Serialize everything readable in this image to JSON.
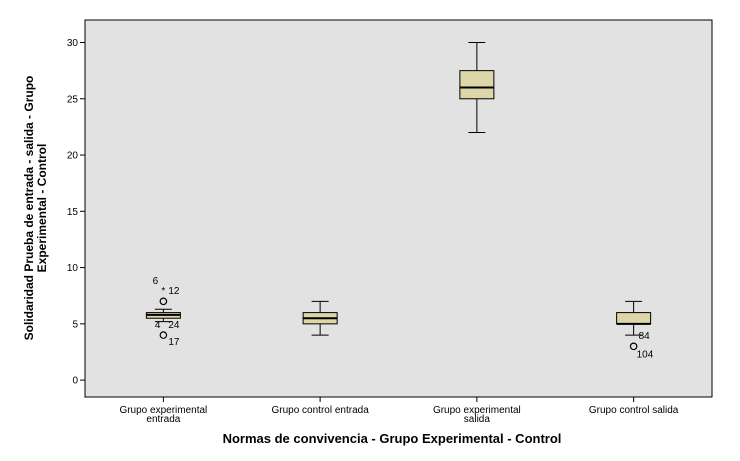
{
  "chart_data": {
    "type": "boxplot",
    "xlabel": "Normas de convivencia - Grupo Experimental - Control",
    "ylabel_lines": [
      "Solidaridad Prueba de entrada - salida - Grupo",
      "Experimental - Control"
    ],
    "ylim": [
      -1.5,
      32
    ],
    "yticks": [
      0,
      5,
      10,
      15,
      20,
      25,
      30
    ],
    "grid": false,
    "colors": {
      "plot_bg": "#e2e2e2",
      "box_fill": "#ddd6a8",
      "stroke": "#000000"
    },
    "categories": [
      {
        "label_lines": [
          "Grupo experimental",
          "entrada"
        ]
      },
      {
        "label_lines": [
          "Grupo control entrada"
        ]
      },
      {
        "label_lines": [
          "Grupo experimental",
          "salida"
        ]
      },
      {
        "label_lines": [
          "Grupo control salida"
        ]
      }
    ],
    "boxes": [
      {
        "min": 5.2,
        "q1": 5.5,
        "median": 5.8,
        "q3": 6.0,
        "max": 6.3,
        "outliers": [
          {
            "value": 8,
            "marker": "star",
            "label": "6"
          },
          {
            "value": 8,
            "marker": "none",
            "label": "12"
          },
          {
            "value": 7,
            "marker": "circle",
            "label": ""
          },
          {
            "value": 5,
            "marker": "none",
            "label": "4"
          },
          {
            "value": 5,
            "marker": "none",
            "label": "24"
          },
          {
            "value": 4,
            "marker": "circle",
            "label": "17"
          }
        ]
      },
      {
        "min": 4,
        "q1": 5,
        "median": 5.5,
        "q3": 6,
        "max": 7,
        "outliers": []
      },
      {
        "min": 22,
        "q1": 25,
        "median": 26,
        "q3": 27.5,
        "max": 30,
        "outliers": []
      },
      {
        "min": 4,
        "q1": 5,
        "median": 5,
        "q3": 6,
        "max": 7,
        "outliers": [
          {
            "value": 4,
            "marker": "none",
            "label": "84"
          },
          {
            "value": 3,
            "marker": "circle",
            "label": "104"
          }
        ]
      }
    ]
  }
}
